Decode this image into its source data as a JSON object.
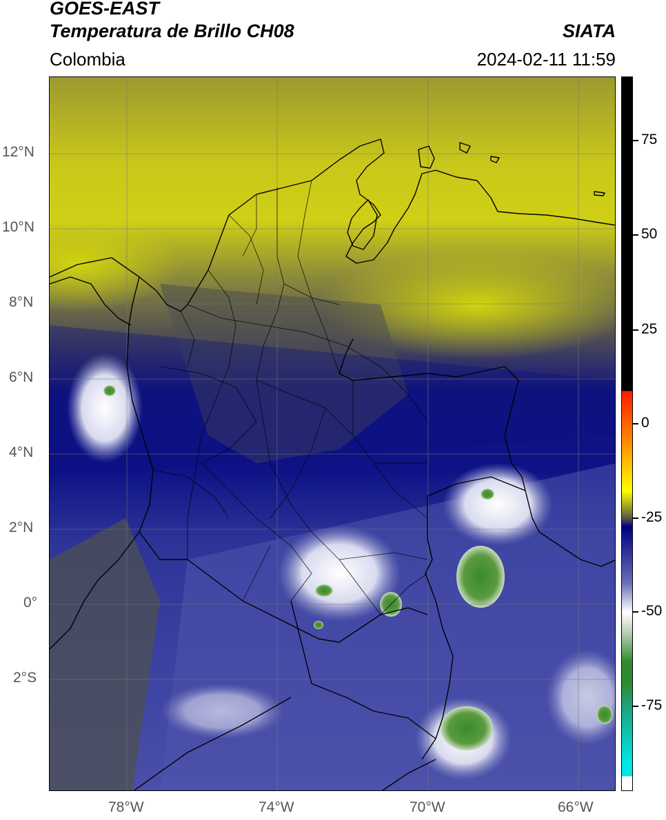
{
  "header": {
    "satellite": "GOES-EAST",
    "product": "Temperatura de Brillo CH08",
    "region": "Colombia",
    "organization": "SIATA",
    "datetime": "2024-02-11 11:59"
  },
  "map": {
    "lon_range": [
      -80,
      -65
    ],
    "lat_range": [
      -5,
      14
    ],
    "lat_ticks": [
      "12°N",
      "10°N",
      "8°N",
      "6°N",
      "4°N",
      "2°N",
      "0°",
      "2°S"
    ],
    "lon_ticks": [
      "78°W",
      "74°W",
      "70°W",
      "66°W"
    ],
    "gridlines": true
  },
  "colorbar": {
    "tick_labels": [
      "75",
      "50",
      "25",
      "0",
      "-25",
      "-50",
      "-75"
    ],
    "colors": {
      "black_segment": "#000000",
      "red": "#ff1a00",
      "orange": "#ff9900",
      "yellow": "#ffff00",
      "olive": "#7d7d33",
      "navy": "#000080",
      "periwinkle": "#6a6fb8",
      "white": "#ffffff",
      "green": "#2e8b2e",
      "cyan": "#00e5e5"
    }
  }
}
